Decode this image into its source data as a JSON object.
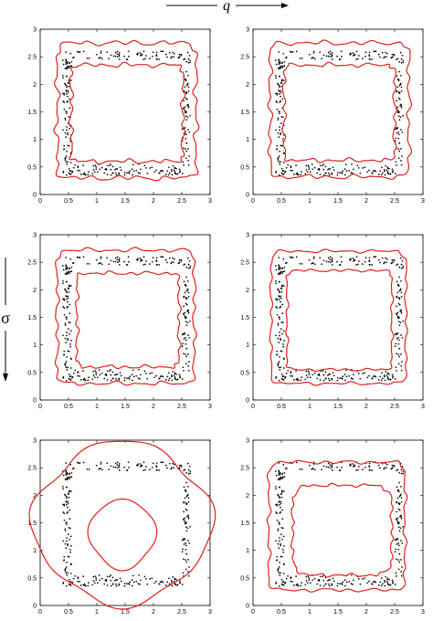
{
  "figure": {
    "x_arrow_label": "q",
    "y_arrow_label": "σ"
  },
  "colors": {
    "contour": "#e0201c",
    "points": "#000000",
    "axes": "#000000"
  },
  "chart_data": [
    {
      "type": "scatter",
      "panel": "row1-left",
      "xlim": [
        0,
        3
      ],
      "ylim": [
        0,
        3
      ],
      "xticks": [
        "0",
        "0.5",
        "1",
        "1.5",
        "2",
        "2.5",
        "3"
      ],
      "yticks": [
        "0",
        "0.5",
        "1",
        "1.5",
        "2",
        "2.5",
        "3"
      ],
      "grid": false,
      "points_region": {
        "outer": [
          0.4,
          2.65,
          0.35,
          2.6
        ],
        "inner": [
          0.55,
          2.5,
          0.55,
          2.45
        ]
      },
      "contours": [
        {
          "kind": "band",
          "outer": [
            0.3,
            2.75,
            0.3,
            2.75
          ],
          "inner": [
            0.55,
            2.52,
            0.6,
            2.35
          ],
          "wobble": 0.05
        }
      ]
    },
    {
      "type": "scatter",
      "panel": "row1-right",
      "xlim": [
        0,
        3
      ],
      "ylim": [
        0,
        3
      ],
      "xticks": [
        "0",
        "0.5",
        "1",
        "1.5",
        "2",
        "2.5",
        "3"
      ],
      "yticks": [
        "0",
        "0.5",
        "1",
        "1.5",
        "2",
        "2.5",
        "3"
      ],
      "grid": false,
      "points_region": {
        "outer": [
          0.4,
          2.65,
          0.35,
          2.6
        ],
        "inner": [
          0.55,
          2.5,
          0.55,
          2.45
        ]
      },
      "contours": [
        {
          "kind": "band",
          "outer": [
            0.3,
            2.75,
            0.32,
            2.75
          ],
          "inner": [
            0.55,
            2.5,
            0.62,
            2.35
          ],
          "wobble": 0.045
        }
      ]
    },
    {
      "type": "scatter",
      "panel": "row2-left",
      "xlim": [
        0,
        3
      ],
      "ylim": [
        0,
        3
      ],
      "xticks": [
        "0",
        "0.5",
        "1",
        "1.5",
        "2",
        "2.5",
        "3"
      ],
      "yticks": [
        "0",
        "0.5",
        "1",
        "1.5",
        "2",
        "2.5",
        "3"
      ],
      "grid": false,
      "points_region": {
        "outer": [
          0.4,
          2.65,
          0.35,
          2.6
        ],
        "inner": [
          0.55,
          2.5,
          0.55,
          2.45
        ]
      },
      "contours": [
        {
          "kind": "band",
          "outer": [
            0.3,
            2.72,
            0.3,
            2.72
          ],
          "inner": [
            0.65,
            2.45,
            0.6,
            2.3
          ],
          "wobble": 0.04
        }
      ]
    },
    {
      "type": "scatter",
      "panel": "row2-right",
      "xlim": [
        0,
        3
      ],
      "ylim": [
        0,
        3
      ],
      "xticks": [
        "0",
        "0.5",
        "1",
        "1.5",
        "2",
        "2.5",
        "3"
      ],
      "yticks": [
        "0",
        "0.5",
        "1",
        "1.5",
        "2",
        "2.5",
        "3"
      ],
      "grid": false,
      "points_region": {
        "outer": [
          0.4,
          2.65,
          0.35,
          2.6
        ],
        "inner": [
          0.55,
          2.5,
          0.55,
          2.45
        ]
      },
      "contours": [
        {
          "kind": "band",
          "outer": [
            0.32,
            2.7,
            0.3,
            2.7
          ],
          "inner": [
            0.6,
            2.45,
            0.55,
            2.35
          ],
          "wobble": 0.03
        }
      ]
    },
    {
      "type": "scatter",
      "panel": "row3-left",
      "xlim": [
        0,
        3
      ],
      "ylim": [
        0,
        3
      ],
      "xticks": [
        "0",
        "0.5",
        "1",
        "1.5",
        "2",
        "2.5",
        "3"
      ],
      "yticks": [
        "0",
        "0.5",
        "1",
        "1.5",
        "2",
        "2.5",
        "3"
      ],
      "grid": false,
      "points_region": {
        "outer": [
          0.4,
          2.65,
          0.35,
          2.6
        ],
        "inner": [
          0.55,
          2.5,
          0.55,
          2.45
        ]
      },
      "contours": [
        {
          "kind": "blob",
          "cx": 1.45,
          "cy": 1.5,
          "rx": 1.55,
          "ry": 1.45,
          "n": 7
        },
        {
          "kind": "blob",
          "cx": 1.45,
          "cy": 1.3,
          "rx": 0.58,
          "ry": 0.62,
          "n": 3
        }
      ]
    },
    {
      "type": "scatter",
      "panel": "row3-right",
      "xlim": [
        0,
        3
      ],
      "ylim": [
        0,
        3
      ],
      "xticks": [
        "0",
        "0.5",
        "1",
        "1.5",
        "2",
        "2.5",
        "3"
      ],
      "yticks": [
        "0",
        "0.5",
        "1",
        "1.5",
        "2",
        "2.5",
        "3"
      ],
      "grid": false,
      "points_region": {
        "outer": [
          0.4,
          2.65,
          0.35,
          2.6
        ],
        "inner": [
          0.55,
          2.5,
          0.55,
          2.45
        ]
      },
      "contours": [
        {
          "kind": "band",
          "outer": [
            0.28,
            2.68,
            0.28,
            2.6
          ],
          "inner": [
            0.7,
            2.45,
            0.55,
            2.18
          ],
          "wobble": 0.035,
          "inner_round": true
        }
      ]
    }
  ]
}
